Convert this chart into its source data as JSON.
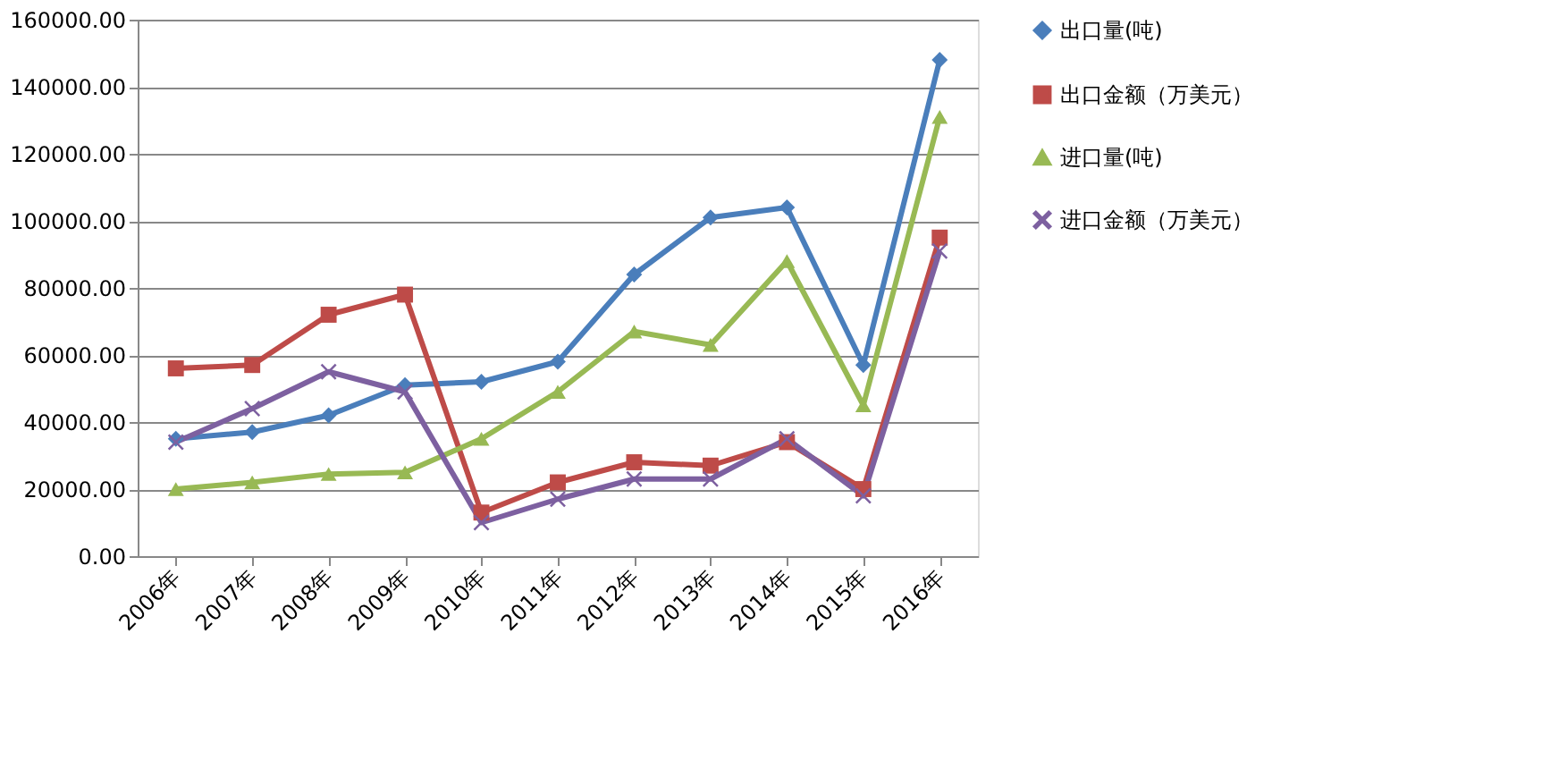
{
  "chart_data": {
    "type": "line",
    "categories": [
      "2006年",
      "2007年",
      "2008年",
      "2009年",
      "2010年",
      "2011年",
      "2012年",
      "2013年",
      "2014年",
      "2015年",
      "2016年"
    ],
    "series": [
      {
        "name": "出口量(吨)",
        "color": "#4a7ebb",
        "marker": "diamond",
        "values": [
          35000,
          37000,
          42000,
          51000,
          52000,
          58000,
          84000,
          101000,
          104000,
          57000,
          148000
        ]
      },
      {
        "name": "出口金额（万美元）",
        "color": "#be4b48",
        "marker": "square",
        "values": [
          56000,
          57000,
          72000,
          78000,
          13000,
          22000,
          28000,
          27000,
          34000,
          20000,
          95000
        ]
      },
      {
        "name": "进口量(吨)",
        "color": "#98b954",
        "marker": "triangle",
        "values": [
          20000,
          22000,
          24500,
          25000,
          35000,
          49000,
          67000,
          63000,
          88000,
          45000,
          131000
        ]
      },
      {
        "name": "进口金额（万美元）",
        "color": "#7d60a0",
        "marker": "cross",
        "values": [
          34000,
          44000,
          55000,
          49000,
          10000,
          17000,
          23000,
          23000,
          35000,
          18000,
          91000
        ]
      }
    ],
    "ylim": [
      0,
      160000
    ],
    "yticks": [
      {
        "value": 0,
        "label": "0.00"
      },
      {
        "value": 20000,
        "label": "20000.00"
      },
      {
        "value": 40000,
        "label": "40000.00"
      },
      {
        "value": 60000,
        "label": "60000.00"
      },
      {
        "value": 80000,
        "label": "80000.00"
      },
      {
        "value": 100000,
        "label": "100000.00"
      },
      {
        "value": 120000,
        "label": "120000.00"
      },
      {
        "value": 140000,
        "label": "140000.00"
      },
      {
        "value": 160000,
        "label": "160000.00"
      }
    ],
    "grid": "y",
    "legend": "right",
    "line_style": "solid"
  }
}
